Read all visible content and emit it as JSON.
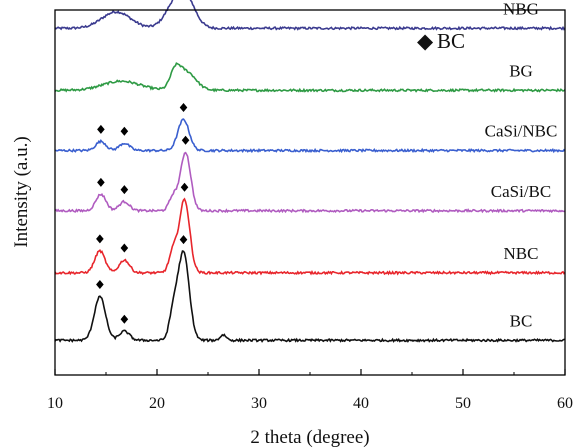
{
  "chart_data": {
    "type": "line",
    "title": "",
    "xlabel": "2 theta (degree)",
    "ylabel": "Intensity (a.u.)",
    "xlim": [
      10,
      60
    ],
    "x_ticks": [
      "10",
      "20",
      "30",
      "40",
      "50",
      "60"
    ],
    "y_ticks": [],
    "grid": false,
    "legend": {
      "marker": "◆",
      "label": "BC",
      "placement": "top-right"
    },
    "series": [
      {
        "name": "NBG",
        "color": "#3b3b8f",
        "baseline": 0.95,
        "peaks": [
          [
            16.0,
            1.4,
            0.045
          ],
          [
            21.8,
            1.0,
            0.06
          ],
          [
            22.9,
            0.9,
            0.065
          ]
        ],
        "markers": []
      },
      {
        "name": "BG",
        "color": "#2e9a44",
        "baseline": 0.78,
        "peaks": [
          [
            16.5,
            1.8,
            0.025
          ],
          [
            21.8,
            0.5,
            0.045
          ],
          [
            22.9,
            0.9,
            0.05
          ]
        ],
        "markers": []
      },
      {
        "name": "CaSi/NBC",
        "color": "#3a5fcf",
        "baseline": 0.615,
        "peaks": [
          [
            14.5,
            0.5,
            0.025
          ],
          [
            16.8,
            0.5,
            0.02
          ],
          [
            22.6,
            0.55,
            0.085
          ]
        ],
        "markers": [
          14.5,
          16.8,
          22.6
        ]
      },
      {
        "name": "CaSi/BC",
        "color": "#b05cc0",
        "baseline": 0.45,
        "peaks": [
          [
            14.5,
            0.5,
            0.045
          ],
          [
            16.8,
            0.5,
            0.025
          ],
          [
            21.6,
            0.4,
            0.04
          ],
          [
            22.8,
            0.5,
            0.16
          ]
        ],
        "markers": [
          14.5,
          16.8,
          22.8
        ]
      },
      {
        "name": "NBC",
        "color": "#e8262c",
        "baseline": 0.28,
        "peaks": [
          [
            14.4,
            0.5,
            0.06
          ],
          [
            16.8,
            0.5,
            0.035
          ],
          [
            21.6,
            0.4,
            0.06
          ],
          [
            22.7,
            0.5,
            0.2
          ]
        ],
        "markers": [
          14.4,
          16.8,
          22.7
        ]
      },
      {
        "name": "BC",
        "color": "#111111",
        "baseline": 0.095,
        "peaks": [
          [
            14.4,
            0.55,
            0.12
          ],
          [
            16.8,
            0.5,
            0.025
          ],
          [
            21.6,
            0.4,
            0.07
          ],
          [
            22.6,
            0.55,
            0.24
          ],
          [
            26.5,
            0.3,
            0.015
          ]
        ],
        "markers": [
          14.4,
          16.8,
          22.6
        ]
      }
    ]
  }
}
